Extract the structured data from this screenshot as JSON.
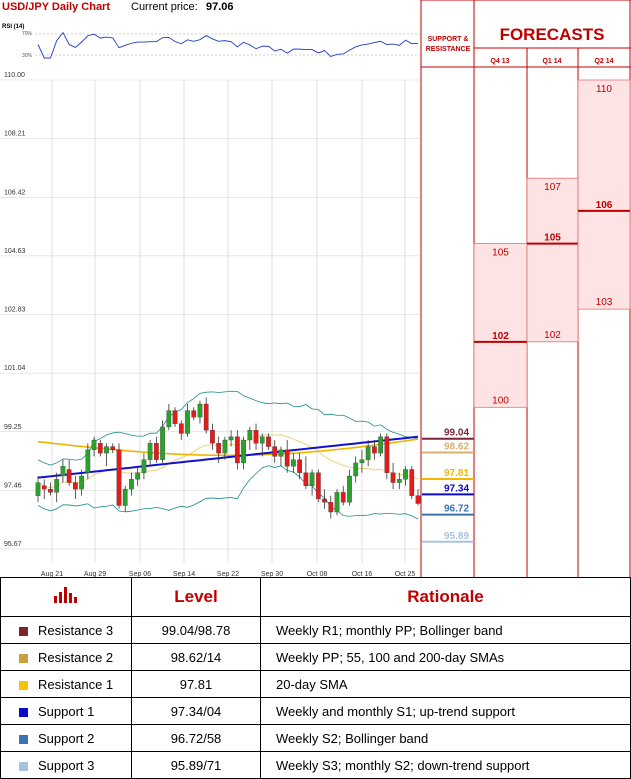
{
  "header": {
    "title": "USD/JPY Daily Chart",
    "price_label": "Current price:",
    "price_value": "97.06"
  },
  "rsi": {
    "label": "RSI (14)",
    "ticks": [
      "70%",
      "30%"
    ]
  },
  "side": {
    "support_resistance_title_1": "SUPPORT &",
    "support_resistance_title_2": "RESISTANCE",
    "forecasts_title": "FORECASTS",
    "columns": [
      "Q4 13",
      "Q1 14",
      "Q2 14"
    ]
  },
  "forecasts": [
    {
      "period": "Q4 13",
      "high": 105,
      "central": 102,
      "low": 100,
      "labels": {
        "high": "105",
        "central": "102",
        "low": "100"
      }
    },
    {
      "period": "Q1 14",
      "high": 107,
      "central": 105,
      "low": 102,
      "labels": {
        "high": "107",
        "central": "105",
        "low": "102"
      }
    },
    {
      "period": "Q2 14",
      "high": 110,
      "central": 106,
      "low": 103,
      "labels": {
        "high": "110",
        "central": "106",
        "low": "103"
      }
    }
  ],
  "levels": [
    {
      "label": "99.04",
      "value": 99.04,
      "color": "#7b2534"
    },
    {
      "label": "98.62",
      "value": 98.62,
      "color": "#d9b070"
    },
    {
      "label": "97.81",
      "value": 97.81,
      "color": "#f5b800"
    },
    {
      "label": "97.34",
      "value": 97.34,
      "color": "#0a0ac8"
    },
    {
      "label": "96.72",
      "value": 96.72,
      "color": "#3a72b4"
    },
    {
      "label": "95.89",
      "value": 95.89,
      "color": "#a8c2de"
    }
  ],
  "chart_data": {
    "type": "candlestick",
    "ylim": [
      95.67,
      110.0
    ],
    "y_ticks": [
      "110.00",
      "108.21",
      "106.42",
      "104.63",
      "102.83",
      "101.04",
      "99.25",
      "97.46",
      "95.67"
    ],
    "x_ticks": [
      "Aug 21",
      "Aug 29",
      "Sep 06",
      "Sep 14",
      "Sep 22",
      "Sep 30",
      "Oct 08",
      "Oct 16",
      "Oct 25"
    ],
    "candles": [
      {
        "o": 97.3,
        "h": 97.9,
        "l": 97.1,
        "c": 97.7
      },
      {
        "o": 97.6,
        "h": 97.8,
        "l": 97.2,
        "c": 97.5
      },
      {
        "o": 97.5,
        "h": 97.7,
        "l": 97.3,
        "c": 97.4
      },
      {
        "o": 97.4,
        "h": 98.0,
        "l": 97.1,
        "c": 97.8
      },
      {
        "o": 97.9,
        "h": 98.4,
        "l": 97.7,
        "c": 98.2
      },
      {
        "o": 98.1,
        "h": 98.4,
        "l": 97.6,
        "c": 97.7
      },
      {
        "o": 97.7,
        "h": 97.9,
        "l": 97.2,
        "c": 97.5
      },
      {
        "o": 97.5,
        "h": 98.1,
        "l": 97.3,
        "c": 97.9
      },
      {
        "o": 98.0,
        "h": 98.9,
        "l": 97.8,
        "c": 98.7
      },
      {
        "o": 98.7,
        "h": 99.1,
        "l": 98.5,
        "c": 99.0
      },
      {
        "o": 98.9,
        "h": 99.0,
        "l": 98.5,
        "c": 98.6
      },
      {
        "o": 98.6,
        "h": 98.9,
        "l": 98.2,
        "c": 98.8
      },
      {
        "o": 98.8,
        "h": 98.9,
        "l": 98.6,
        "c": 98.7
      },
      {
        "o": 98.7,
        "h": 98.9,
        "l": 96.9,
        "c": 97.0
      },
      {
        "o": 97.0,
        "h": 97.6,
        "l": 96.8,
        "c": 97.5
      },
      {
        "o": 97.5,
        "h": 98.0,
        "l": 97.3,
        "c": 97.8
      },
      {
        "o": 97.8,
        "h": 98.2,
        "l": 97.6,
        "c": 98.0
      },
      {
        "o": 98.0,
        "h": 98.6,
        "l": 97.8,
        "c": 98.4
      },
      {
        "o": 98.4,
        "h": 99.0,
        "l": 98.2,
        "c": 98.9
      },
      {
        "o": 98.9,
        "h": 99.1,
        "l": 98.3,
        "c": 98.4
      },
      {
        "o": 98.4,
        "h": 99.6,
        "l": 98.3,
        "c": 99.4
      },
      {
        "o": 99.4,
        "h": 100.1,
        "l": 99.3,
        "c": 99.9
      },
      {
        "o": 99.9,
        "h": 100.0,
        "l": 99.4,
        "c": 99.5
      },
      {
        "o": 99.5,
        "h": 99.6,
        "l": 99.0,
        "c": 99.2
      },
      {
        "o": 99.2,
        "h": 100.1,
        "l": 99.1,
        "c": 99.9
      },
      {
        "o": 99.9,
        "h": 100.0,
        "l": 99.6,
        "c": 99.7
      },
      {
        "o": 99.7,
        "h": 100.2,
        "l": 99.5,
        "c": 100.1
      },
      {
        "o": 100.1,
        "h": 100.3,
        "l": 99.2,
        "c": 99.3
      },
      {
        "o": 99.3,
        "h": 99.5,
        "l": 98.7,
        "c": 98.9
      },
      {
        "o": 98.9,
        "h": 99.1,
        "l": 98.3,
        "c": 98.6
      },
      {
        "o": 98.6,
        "h": 99.1,
        "l": 98.4,
        "c": 99.0
      },
      {
        "o": 99.0,
        "h": 99.3,
        "l": 98.8,
        "c": 99.1
      },
      {
        "o": 99.1,
        "h": 99.3,
        "l": 98.1,
        "c": 98.3
      },
      {
        "o": 98.3,
        "h": 99.1,
        "l": 98.1,
        "c": 99.0
      },
      {
        "o": 99.0,
        "h": 99.4,
        "l": 98.7,
        "c": 99.3
      },
      {
        "o": 99.3,
        "h": 99.5,
        "l": 98.7,
        "c": 98.9
      },
      {
        "o": 98.9,
        "h": 99.2,
        "l": 98.5,
        "c": 99.1
      },
      {
        "o": 99.1,
        "h": 99.2,
        "l": 98.7,
        "c": 98.8
      },
      {
        "o": 98.8,
        "h": 99.0,
        "l": 98.3,
        "c": 98.5
      },
      {
        "o": 98.5,
        "h": 98.8,
        "l": 98.2,
        "c": 98.7
      },
      {
        "o": 98.7,
        "h": 99.0,
        "l": 98.0,
        "c": 98.2
      },
      {
        "o": 98.2,
        "h": 98.6,
        "l": 98.0,
        "c": 98.4
      },
      {
        "o": 98.4,
        "h": 98.6,
        "l": 97.8,
        "c": 98.0
      },
      {
        "o": 98.0,
        "h": 98.5,
        "l": 97.5,
        "c": 97.6
      },
      {
        "o": 97.6,
        "h": 98.1,
        "l": 97.3,
        "c": 98.0
      },
      {
        "o": 98.0,
        "h": 98.1,
        "l": 97.1,
        "c": 97.2
      },
      {
        "o": 97.2,
        "h": 97.5,
        "l": 96.9,
        "c": 97.1
      },
      {
        "o": 97.1,
        "h": 97.3,
        "l": 96.6,
        "c": 96.8
      },
      {
        "o": 96.8,
        "h": 97.5,
        "l": 96.7,
        "c": 97.4
      },
      {
        "o": 97.4,
        "h": 97.6,
        "l": 97.0,
        "c": 97.1
      },
      {
        "o": 97.1,
        "h": 98.1,
        "l": 97.0,
        "c": 97.9
      },
      {
        "o": 97.9,
        "h": 98.5,
        "l": 97.7,
        "c": 98.3
      },
      {
        "o": 98.3,
        "h": 98.7,
        "l": 98.0,
        "c": 98.4
      },
      {
        "o": 98.4,
        "h": 99.0,
        "l": 98.2,
        "c": 98.8
      },
      {
        "o": 98.8,
        "h": 99.0,
        "l": 98.4,
        "c": 98.6
      },
      {
        "o": 98.6,
        "h": 99.2,
        "l": 98.5,
        "c": 99.1
      },
      {
        "o": 99.1,
        "h": 99.2,
        "l": 97.8,
        "c": 98.0
      },
      {
        "o": 98.0,
        "h": 98.3,
        "l": 97.5,
        "c": 97.7
      },
      {
        "o": 97.7,
        "h": 98.0,
        "l": 97.5,
        "c": 97.8
      },
      {
        "o": 97.8,
        "h": 98.2,
        "l": 97.6,
        "c": 98.1
      },
      {
        "o": 98.1,
        "h": 98.2,
        "l": 97.2,
        "c": 97.3
      },
      {
        "o": 97.3,
        "h": 97.5,
        "l": 97.0,
        "c": 97.06
      }
    ]
  },
  "table": {
    "headers": [
      "Level",
      "Rationale"
    ],
    "rows": [
      {
        "name": "Resistance 3",
        "level": "99.04/98.78",
        "rationale": "Weekly R1; monthly PP; Bollinger band",
        "color": "#7b2534"
      },
      {
        "name": "Resistance 2",
        "level": "98.62/14",
        "rationale": "Weekly PP; 55, 100 and 200-day SMAs",
        "color": "#c9a040"
      },
      {
        "name": "Resistance 1",
        "level": "97.81",
        "rationale": "20-day SMA",
        "color": "#f5c400"
      },
      {
        "name": "Support 1",
        "level": "97.34/04",
        "rationale": "Weekly and monthly S1; up-trend support",
        "color": "#0a0ac8"
      },
      {
        "name": "Support 2",
        "level": "96.72/58",
        "rationale": "Weekly S2; Bollinger band",
        "color": "#3a72b4"
      },
      {
        "name": "Support 3",
        "level": "95.89/71",
        "rationale": "Weekly S3; monthly S2; down-trend support",
        "color": "#a8c2de"
      }
    ]
  }
}
